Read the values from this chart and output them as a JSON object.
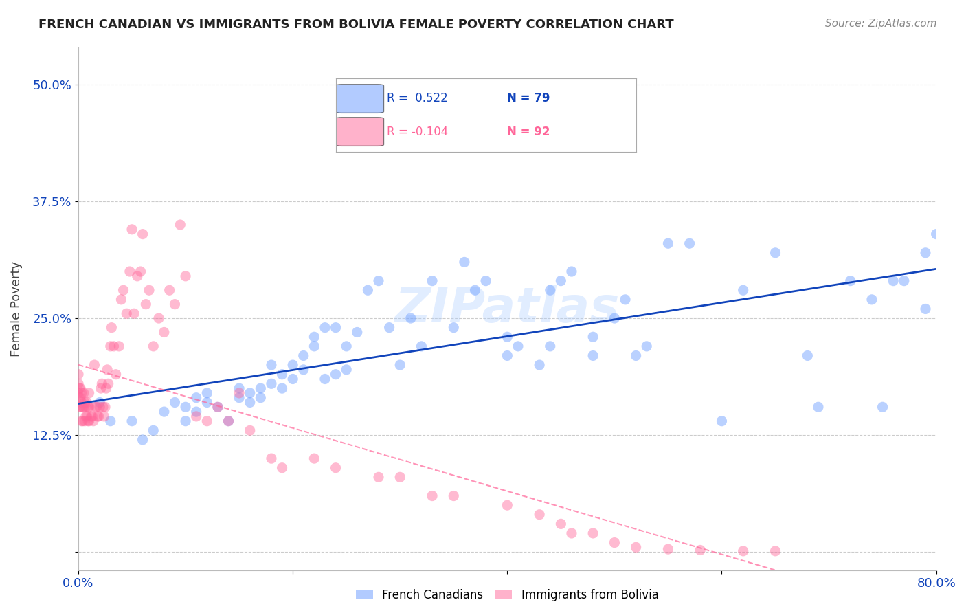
{
  "title": "FRENCH CANADIAN VS IMMIGRANTS FROM BOLIVIA FEMALE POVERTY CORRELATION CHART",
  "source": "Source: ZipAtlas.com",
  "xlabel": "",
  "ylabel": "Female Poverty",
  "watermark": "ZIPatlas",
  "blue_R": 0.522,
  "blue_N": 79,
  "pink_R": -0.104,
  "pink_N": 92,
  "xlim": [
    0.0,
    0.8
  ],
  "ylim": [
    -0.02,
    0.54
  ],
  "yticks": [
    0.0,
    0.125,
    0.25,
    0.375,
    0.5
  ],
  "ytick_labels": [
    "",
    "12.5%",
    "25.0%",
    "37.5%",
    "50.0%"
  ],
  "xticks": [
    0.0,
    0.2,
    0.4,
    0.6,
    0.8
  ],
  "xtick_labels": [
    "0.0%",
    "",
    "",
    "",
    "80.0%"
  ],
  "blue_color": "#6699FF",
  "pink_color": "#FF6699",
  "blue_line_color": "#1144BB",
  "pink_line_color": "#FF99BB",
  "grid_color": "#CCCCCC",
  "background_color": "#FFFFFF",
  "blue_scatter_x": [
    0.02,
    0.03,
    0.05,
    0.06,
    0.07,
    0.08,
    0.09,
    0.1,
    0.1,
    0.11,
    0.11,
    0.12,
    0.12,
    0.13,
    0.14,
    0.15,
    0.15,
    0.16,
    0.16,
    0.17,
    0.17,
    0.18,
    0.18,
    0.19,
    0.19,
    0.2,
    0.2,
    0.21,
    0.21,
    0.22,
    0.22,
    0.23,
    0.23,
    0.24,
    0.24,
    0.25,
    0.25,
    0.26,
    0.27,
    0.28,
    0.29,
    0.3,
    0.31,
    0.32,
    0.33,
    0.35,
    0.36,
    0.37,
    0.38,
    0.4,
    0.4,
    0.41,
    0.43,
    0.44,
    0.44,
    0.45,
    0.46,
    0.48,
    0.48,
    0.49,
    0.5,
    0.51,
    0.52,
    0.53,
    0.55,
    0.57,
    0.6,
    0.62,
    0.65,
    0.68,
    0.69,
    0.72,
    0.74,
    0.75,
    0.76,
    0.77,
    0.79,
    0.79,
    0.8
  ],
  "blue_scatter_y": [
    0.16,
    0.14,
    0.14,
    0.12,
    0.13,
    0.15,
    0.16,
    0.14,
    0.155,
    0.15,
    0.165,
    0.16,
    0.17,
    0.155,
    0.14,
    0.165,
    0.175,
    0.16,
    0.17,
    0.165,
    0.175,
    0.18,
    0.2,
    0.175,
    0.19,
    0.185,
    0.2,
    0.195,
    0.21,
    0.22,
    0.23,
    0.24,
    0.185,
    0.19,
    0.24,
    0.195,
    0.22,
    0.235,
    0.28,
    0.29,
    0.24,
    0.2,
    0.25,
    0.22,
    0.29,
    0.24,
    0.31,
    0.28,
    0.29,
    0.21,
    0.23,
    0.22,
    0.2,
    0.22,
    0.28,
    0.29,
    0.3,
    0.21,
    0.23,
    0.44,
    0.25,
    0.27,
    0.21,
    0.22,
    0.33,
    0.33,
    0.14,
    0.28,
    0.32,
    0.21,
    0.155,
    0.29,
    0.27,
    0.155,
    0.29,
    0.29,
    0.26,
    0.32,
    0.34
  ],
  "pink_scatter_x": [
    0.0,
    0.0,
    0.0,
    0.001,
    0.001,
    0.001,
    0.002,
    0.002,
    0.002,
    0.003,
    0.003,
    0.003,
    0.004,
    0.004,
    0.005,
    0.005,
    0.006,
    0.006,
    0.007,
    0.007,
    0.008,
    0.008,
    0.009,
    0.009,
    0.01,
    0.01,
    0.01,
    0.012,
    0.013,
    0.014,
    0.015,
    0.016,
    0.017,
    0.018,
    0.019,
    0.02,
    0.021,
    0.022,
    0.023,
    0.024,
    0.025,
    0.026,
    0.027,
    0.028,
    0.03,
    0.031,
    0.033,
    0.035,
    0.038,
    0.04,
    0.042,
    0.045,
    0.048,
    0.05,
    0.052,
    0.055,
    0.058,
    0.06,
    0.063,
    0.066,
    0.07,
    0.075,
    0.08,
    0.085,
    0.09,
    0.095,
    0.1,
    0.11,
    0.12,
    0.13,
    0.14,
    0.15,
    0.16,
    0.18,
    0.19,
    0.22,
    0.24,
    0.28,
    0.3,
    0.33,
    0.35,
    0.4,
    0.43,
    0.45,
    0.46,
    0.48,
    0.5,
    0.52,
    0.55,
    0.58,
    0.62,
    0.65
  ],
  "pink_scatter_y": [
    0.17,
    0.18,
    0.19,
    0.155,
    0.165,
    0.175,
    0.155,
    0.165,
    0.175,
    0.14,
    0.16,
    0.17,
    0.14,
    0.155,
    0.155,
    0.17,
    0.14,
    0.16,
    0.145,
    0.155,
    0.145,
    0.16,
    0.14,
    0.155,
    0.14,
    0.155,
    0.17,
    0.145,
    0.145,
    0.14,
    0.2,
    0.155,
    0.155,
    0.145,
    0.145,
    0.155,
    0.175,
    0.18,
    0.155,
    0.145,
    0.155,
    0.175,
    0.195,
    0.18,
    0.22,
    0.24,
    0.22,
    0.19,
    0.22,
    0.27,
    0.28,
    0.255,
    0.3,
    0.345,
    0.255,
    0.295,
    0.3,
    0.34,
    0.265,
    0.28,
    0.22,
    0.25,
    0.235,
    0.28,
    0.265,
    0.35,
    0.295,
    0.145,
    0.14,
    0.155,
    0.14,
    0.17,
    0.13,
    0.1,
    0.09,
    0.1,
    0.09,
    0.08,
    0.08,
    0.06,
    0.06,
    0.05,
    0.04,
    0.03,
    0.02,
    0.02,
    0.01,
    0.005,
    0.003,
    0.002,
    0.001,
    0.001
  ]
}
